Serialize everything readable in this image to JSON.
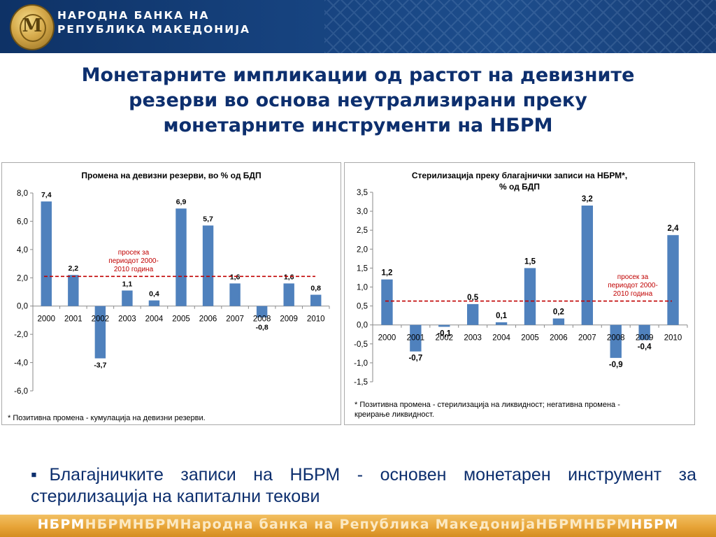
{
  "header": {
    "bank_name_line1": "НАРОДНА БАНКА НА",
    "bank_name_line2": "РЕПУБЛИКА МАКЕДОНИЈА",
    "logo_letter": "М"
  },
  "title": {
    "line1": "Монетарните импликации од растот на девизните",
    "line2": "резерви во основа неутрализирани преку",
    "line3": "монетарните инструменти на НБРМ"
  },
  "chart_data": [
    {
      "type": "bar",
      "title": "Промена на девизни резерви, во % од БДП",
      "categories": [
        "2000",
        "2001",
        "2002",
        "2003",
        "2004",
        "2005",
        "2006",
        "2007",
        "2008",
        "2009",
        "2010"
      ],
      "values": [
        7.4,
        2.2,
        -3.7,
        1.1,
        0.4,
        6.9,
        5.7,
        1.6,
        -0.8,
        1.6,
        0.8
      ],
      "data_labels": [
        "7,4",
        "2,2",
        "-3,7",
        "1,1",
        "0,4",
        "6,9",
        "5,7",
        "1,6",
        "-0,8",
        "1,6",
        "0,8"
      ],
      "ylim": [
        -6,
        8
      ],
      "yticks": [
        8,
        6,
        4,
        2,
        0,
        -2,
        -4,
        -6
      ],
      "ytick_labels": [
        "8,0",
        "6,0",
        "4,0",
        "2,0",
        "0,0",
        "-2,0",
        "-4,0",
        "-6,0"
      ],
      "average": {
        "value": 2.1,
        "label_lines": [
          "просек за",
          "периодот 2000-",
          "2010 година"
        ],
        "color": "#c00000"
      },
      "bar_color": "#4f81bd",
      "footnote": "* Позитивна промена - кумулација на девизни резерви.",
      "grid": false
    },
    {
      "type": "bar",
      "title": "Стерилизација преку благајнички записи на НБРМ*,",
      "subtitle": "% од БДП",
      "categories": [
        "2000",
        "2001",
        "2002",
        "2003",
        "2004",
        "2005",
        "2006",
        "2007",
        "2008",
        "2009",
        "2010"
      ],
      "values": [
        1.2,
        -0.7,
        -0.05,
        0.55,
        0.07,
        1.5,
        0.17,
        3.15,
        -0.87,
        -0.4,
        2.37
      ],
      "data_labels": [
        "1,2",
        "-0,7",
        "-0,1",
        "0,5",
        "0,1",
        "1,5",
        "0,2",
        "3,2",
        "-0,9",
        "-0,4",
        "2,4"
      ],
      "ylim": [
        -1.5,
        3.5
      ],
      "yticks": [
        3.5,
        3.0,
        2.5,
        2.0,
        1.5,
        1.0,
        0.5,
        0.0,
        -0.5,
        -1.0,
        -1.5
      ],
      "ytick_labels": [
        "3,5",
        "3,0",
        "2,5",
        "2,0",
        "1,5",
        "1,0",
        "0,5",
        "0,0",
        "-0,5",
        "-1,0",
        "-1,5"
      ],
      "average": {
        "value": 0.63,
        "label_lines": [
          "просек за",
          "периодот 2000-",
          "2010 година"
        ],
        "color": "#c00000"
      },
      "bar_color": "#4f81bd",
      "footnote_lines": [
        "* Позитивна промена - стерилизација на ликвидност; негативна промена -",
        "креирање ликвидност."
      ],
      "grid": false
    }
  ],
  "bullet": {
    "marker": "▪",
    "text": "Благајничките записи на НБРМ  - основен монетарен инструмент за стерилизација на капитални текови"
  },
  "footer": {
    "segments": [
      {
        "text": "НБРМ",
        "style": "strong"
      },
      {
        "text": "НБРМ",
        "style": "light"
      },
      {
        "text": "НБРМ",
        "style": "light"
      },
      {
        "text": "Народна банка на Република Македонија",
        "style": "light"
      },
      {
        "text": "НБРМ",
        "style": "light"
      },
      {
        "text": "НБРМ",
        "style": "light"
      },
      {
        "text": "НБРМ",
        "style": "strong"
      }
    ]
  }
}
